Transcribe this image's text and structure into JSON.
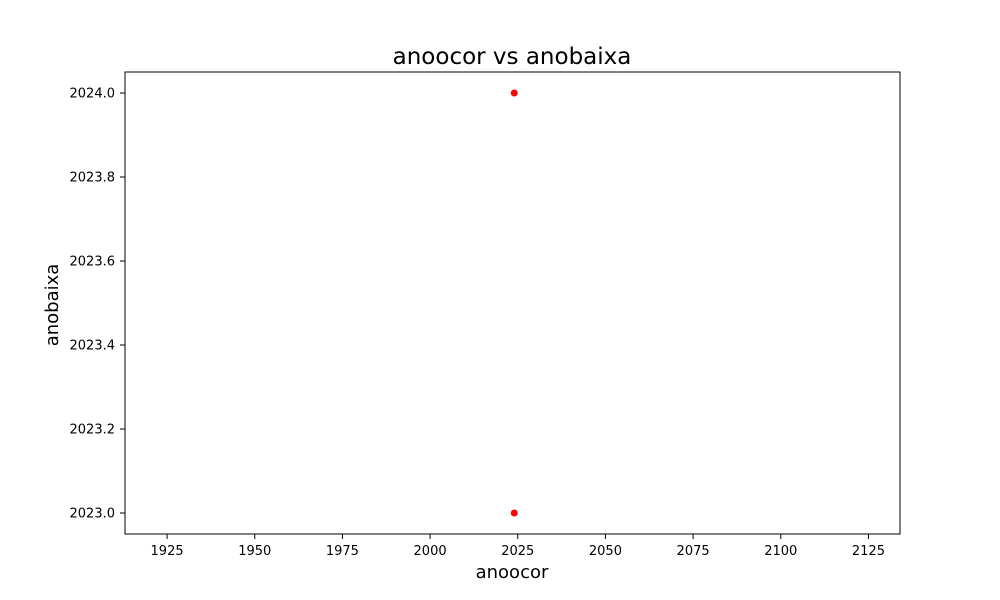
{
  "chart_data": {
    "type": "scatter",
    "title": "anoocor vs anobaixa",
    "xlabel": "anoocor",
    "ylabel": "anobaixa",
    "xlim": [
      1913,
      2134
    ],
    "ylim": [
      2022.95,
      2024.05
    ],
    "x_ticks": [
      1925,
      1950,
      1975,
      2000,
      2025,
      2050,
      2075,
      2100,
      2125
    ],
    "x_tick_labels": [
      "1925",
      "1950",
      "1975",
      "2000",
      "2025",
      "2050",
      "2075",
      "2100",
      "2125"
    ],
    "y_ticks": [
      2023.0,
      2023.2,
      2023.4,
      2023.6,
      2023.8,
      2024.0
    ],
    "y_tick_labels": [
      "2023.0",
      "2023.2",
      "2023.4",
      "2023.6",
      "2023.8",
      "2024.0"
    ],
    "grid": false,
    "point_color": "#ff0000",
    "points": [
      {
        "x": 2024,
        "y": 2024
      },
      {
        "x": 2024,
        "y": 2023
      }
    ]
  }
}
